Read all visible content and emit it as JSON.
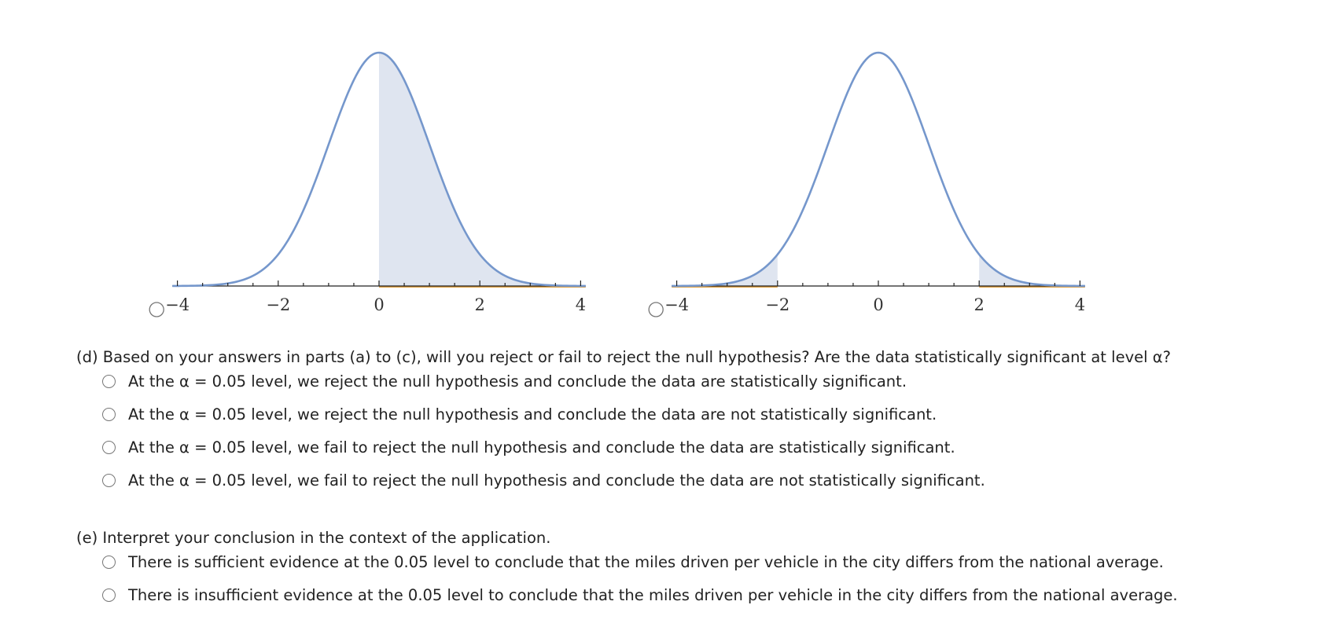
{
  "plots": [
    {
      "type": "normal-curve",
      "xlim": [
        -4.1,
        4.1
      ],
      "xticks": [
        {
          "value": -4,
          "label": "−4"
        },
        {
          "value": -2,
          "label": "−2"
        },
        0,
        2,
        4
      ],
      "minor_xticks": [
        -3.5,
        -3,
        -2.5,
        -1.5,
        -1,
        -0.5,
        0.5,
        1,
        1.5,
        2.5,
        3,
        3.5
      ],
      "shade": [
        [
          0,
          4.1
        ]
      ]
    },
    {
      "type": "normal-curve",
      "xlim": [
        -4.1,
        4.1
      ],
      "xticks": [
        {
          "value": -4,
          "label": "−4"
        },
        {
          "value": -2,
          "label": "−2"
        },
        0,
        2,
        4
      ],
      "minor_xticks": [
        -3.5,
        -3,
        -2.5,
        -1.5,
        -1,
        -0.5,
        0.5,
        1,
        1.5,
        2.5,
        3,
        3.5
      ],
      "shade": [
        [
          -4.1,
          -2
        ],
        [
          2,
          4.1
        ]
      ]
    }
  ],
  "part_d": {
    "question": "(d) Based on your answers in parts (a) to (c), will you reject or fail to reject the null hypothesis? Are the data statistically significant at level α?",
    "options": [
      "At the α = 0.05 level, we reject the null hypothesis and conclude the data are statistically significant.",
      "At the α = 0.05 level, we reject the null hypothesis and conclude the data are not statistically significant.",
      "At the α = 0.05 level, we fail to reject the null hypothesis and conclude the data are statistically significant.",
      "At the α = 0.05 level, we fail to reject the null hypothesis and conclude the data are not statistically significant."
    ]
  },
  "part_e": {
    "question": "(e) Interpret your conclusion in the context of the application.",
    "options": [
      "There is sufficient evidence at the 0.05 level to conclude that the miles driven per vehicle in the city differs from the national average.",
      "There is insufficient evidence at the 0.05 level to conclude that the miles driven per vehicle in the city differs from the national average."
    ]
  }
}
